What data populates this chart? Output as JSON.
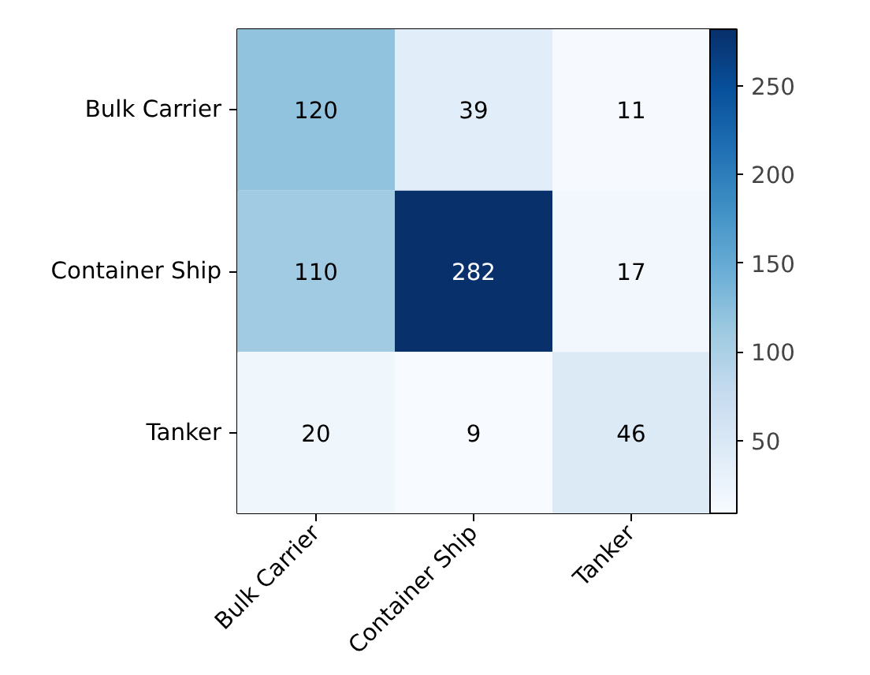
{
  "chart_data": {
    "type": "heatmap",
    "categories": [
      "Bulk Carrier",
      "Container Ship",
      "Tanker"
    ],
    "y_categories": [
      "Bulk Carrier",
      "Container Ship",
      "Tanker"
    ],
    "cells": [
      [
        120,
        39,
        11
      ],
      [
        110,
        282,
        17
      ],
      [
        20,
        9,
        46
      ]
    ],
    "clim": [
      9,
      282
    ],
    "cticks": [
      50,
      100,
      150,
      200,
      250
    ],
    "data_labels": true
  }
}
